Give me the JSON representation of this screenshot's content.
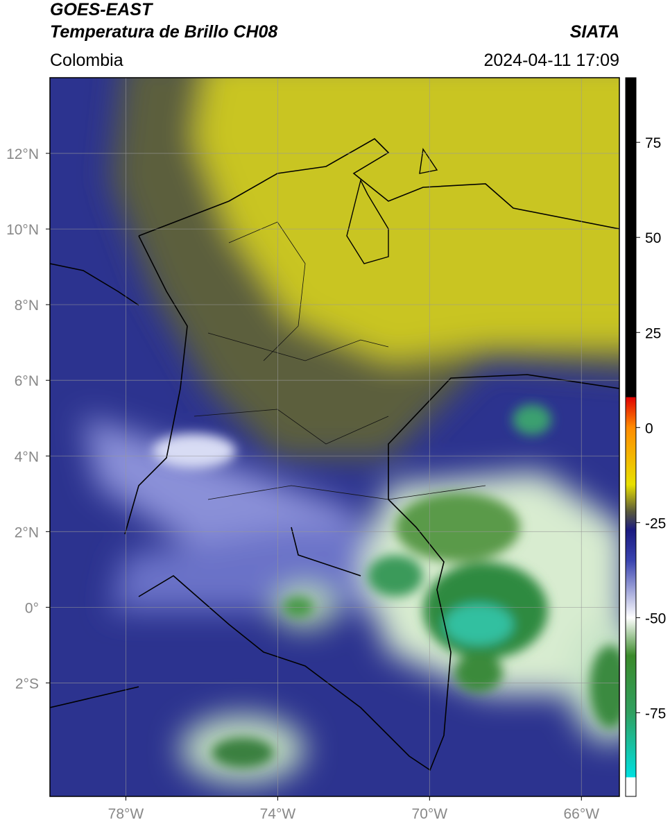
{
  "header": {
    "title_line1": "GOES-EAST",
    "title_line2": "Temperatura de Brillo CH08",
    "source": "SIATA",
    "region": "Colombia",
    "datetime": "2024-04-11 17:09"
  },
  "map": {
    "xlim": [
      -80,
      -65
    ],
    "ylim": [
      -5,
      14
    ],
    "grid": true,
    "xticks": [
      {
        "value": -78,
        "label": "78°W"
      },
      {
        "value": -74,
        "label": "74°W"
      },
      {
        "value": -70,
        "label": "70°W"
      },
      {
        "value": -66,
        "label": "66°W"
      }
    ],
    "yticks": [
      {
        "value": 12,
        "label": "12°N"
      },
      {
        "value": 10,
        "label": "10°N"
      },
      {
        "value": 8,
        "label": "8°N"
      },
      {
        "value": 6,
        "label": "6°N"
      },
      {
        "value": 4,
        "label": "4°N"
      },
      {
        "value": 2,
        "label": "2°N"
      },
      {
        "value": 0,
        "label": "0°"
      },
      {
        "value": -2,
        "label": "2°S"
      }
    ]
  },
  "colorbar": {
    "clim": [
      -97,
      92
    ],
    "ticks": [
      75,
      50,
      25,
      0,
      -25,
      -50,
      -75
    ],
    "stops": [
      [
        92,
        "#000000"
      ],
      [
        8,
        "#000000"
      ],
      [
        8,
        "#e00000"
      ],
      [
        0,
        "#ff8c00"
      ],
      [
        -15,
        "#e8e000"
      ],
      [
        -22,
        "#5a5a3a"
      ],
      [
        -27,
        "#1a1a80"
      ],
      [
        -35,
        "#3a44b0"
      ],
      [
        -50,
        "#ffffff"
      ],
      [
        -60,
        "#3a8a2a"
      ],
      [
        -75,
        "#30a060"
      ],
      [
        -92,
        "#00e0e0"
      ],
      [
        -92,
        "#ffffff"
      ],
      [
        -97,
        "#ffffff"
      ]
    ]
  }
}
